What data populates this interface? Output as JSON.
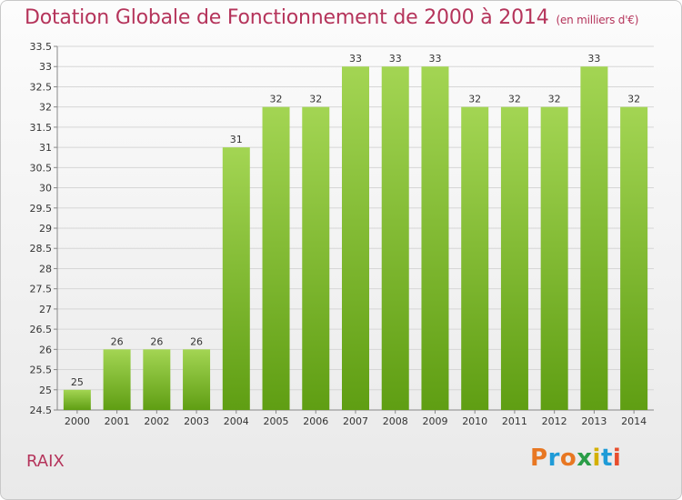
{
  "header": {
    "title": "Dotation Globale de Fonctionnement de 2000 à 2014",
    "unit": "(en milliers d'€)"
  },
  "commune": "RAIX",
  "logo": {
    "text": "Proxiti",
    "colors": [
      "#e87722",
      "#1f9bd7",
      "#e87722",
      "#2a9d47",
      "#d4b000",
      "#1f9bd7",
      "#e84e2e"
    ]
  },
  "colors": {
    "bar_top": "#a3d553",
    "bar_bottom": "#5f9e13",
    "title": "#b5345b"
  },
  "chart_data": {
    "type": "bar",
    "title": "Dotation Globale de Fonctionnement de 2000 à 2014",
    "subtitle": "(en milliers d'€)",
    "categories": [
      "2000",
      "2001",
      "2002",
      "2003",
      "2004",
      "2005",
      "2006",
      "2007",
      "2008",
      "2009",
      "2010",
      "2011",
      "2012",
      "2013",
      "2014"
    ],
    "values": [
      25,
      26,
      26,
      26,
      31,
      32,
      32,
      33,
      33,
      33,
      32,
      32,
      32,
      33,
      32
    ],
    "data_labels": [
      "25",
      "26",
      "26",
      "26",
      "31",
      "32",
      "32",
      "33",
      "33",
      "33",
      "32",
      "32",
      "32",
      "33",
      "32"
    ],
    "ylim": [
      24.5,
      33.5
    ],
    "yticks": [
      "24.5",
      "25",
      "25.5",
      "26",
      "26.5",
      "27",
      "27.5",
      "28",
      "28.5",
      "29",
      "29.5",
      "30",
      "30.5",
      "31",
      "31.5",
      "32",
      "32.5",
      "33",
      "33.5"
    ],
    "grid": true,
    "xlabel": "",
    "ylabel": ""
  }
}
